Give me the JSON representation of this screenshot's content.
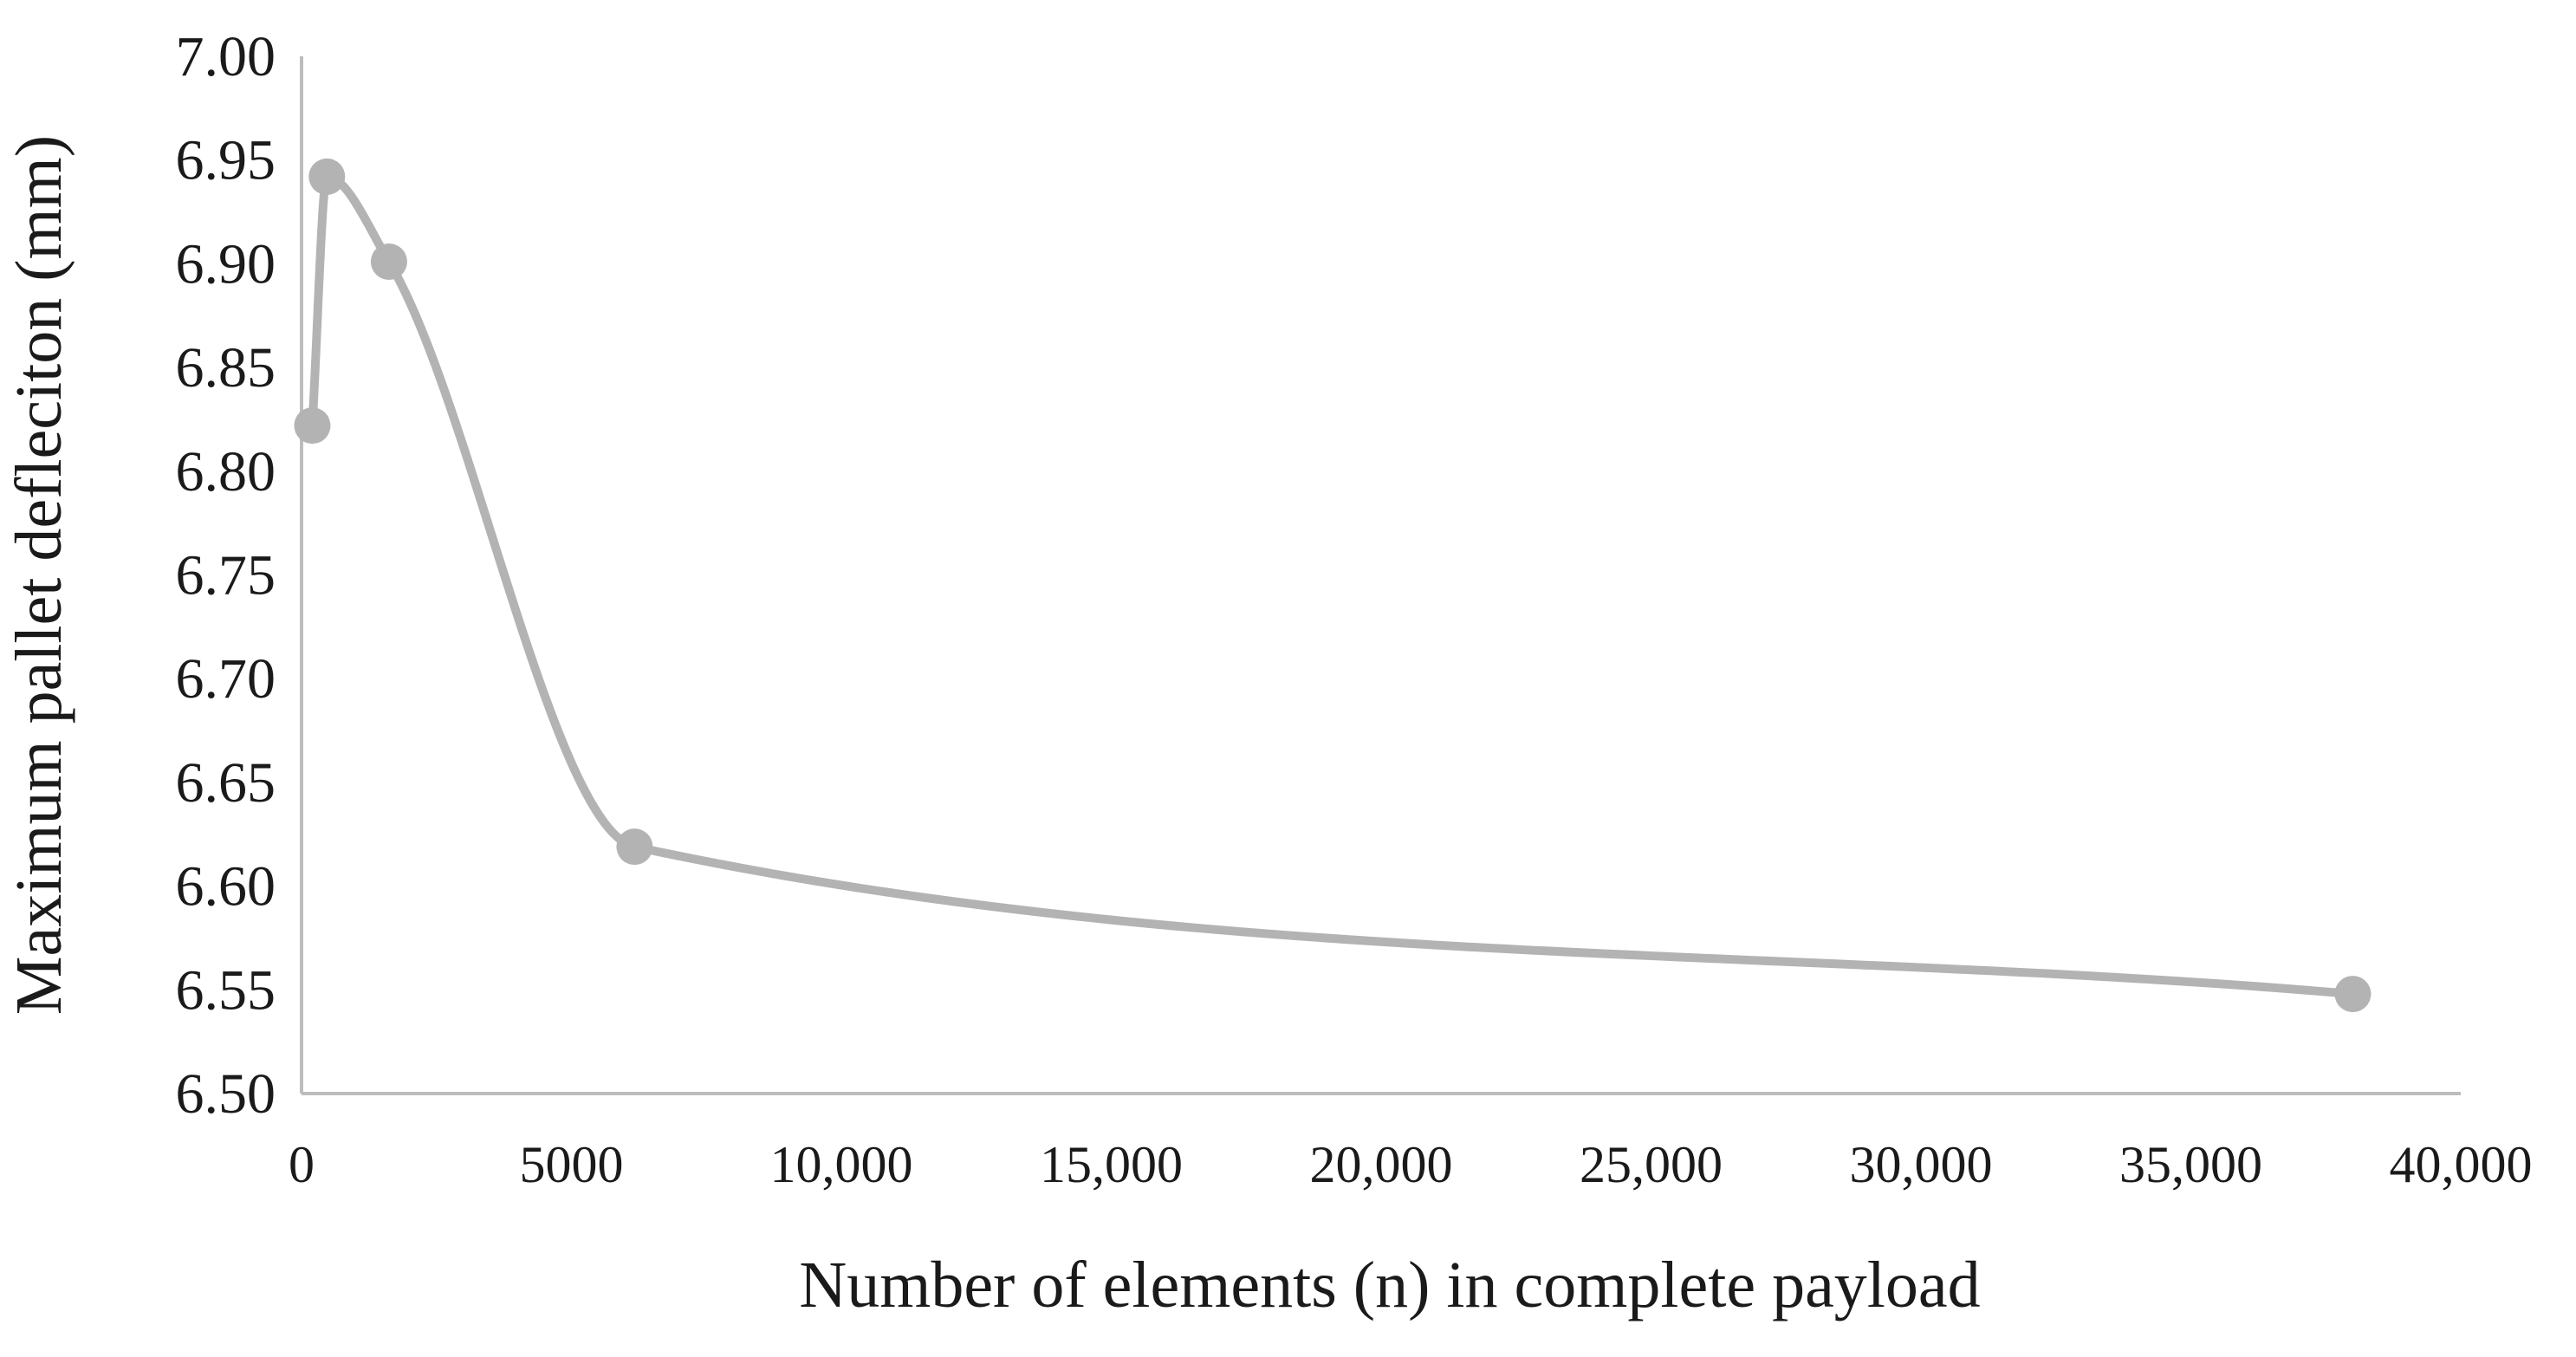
{
  "colors": {
    "series": "#b3b3b3",
    "axis": "#bdbdbd",
    "text": "#1a1a1a",
    "background": "#ffffff"
  },
  "chart_data": {
    "type": "scatter",
    "mode": "lines+markers",
    "smoothed": true,
    "title": "",
    "xlabel": "Number of elements (n) in  complete payload",
    "ylabel": "Maximum pallet defleciton (mm)",
    "xlim": [
      0,
      40000
    ],
    "ylim": [
      6.5,
      7.0
    ],
    "grid": false,
    "legend": "none",
    "x_ticks": [
      0,
      5000,
      10000,
      15000,
      20000,
      25000,
      30000,
      35000,
      40000
    ],
    "x_tick_labels": [
      "0",
      "5000",
      "10,000",
      "15,000",
      "20,000",
      "25,000",
      "30,000",
      "35,000",
      "40,000"
    ],
    "y_ticks": [
      6.5,
      6.55,
      6.6,
      6.65,
      6.7,
      6.75,
      6.8,
      6.85,
      6.9,
      6.95,
      7.0
    ],
    "y_tick_labels": [
      "6.50",
      "6.55",
      "6.60",
      "6.65",
      "6.70",
      "6.75",
      "6.80",
      "6.85",
      "6.90",
      "6.95",
      "7.00"
    ],
    "series": [
      {
        "x": [
          200,
          470,
          1620,
          6170,
          38000
        ],
        "y": [
          6.822,
          6.942,
          6.901,
          6.619,
          6.548
        ]
      }
    ]
  }
}
